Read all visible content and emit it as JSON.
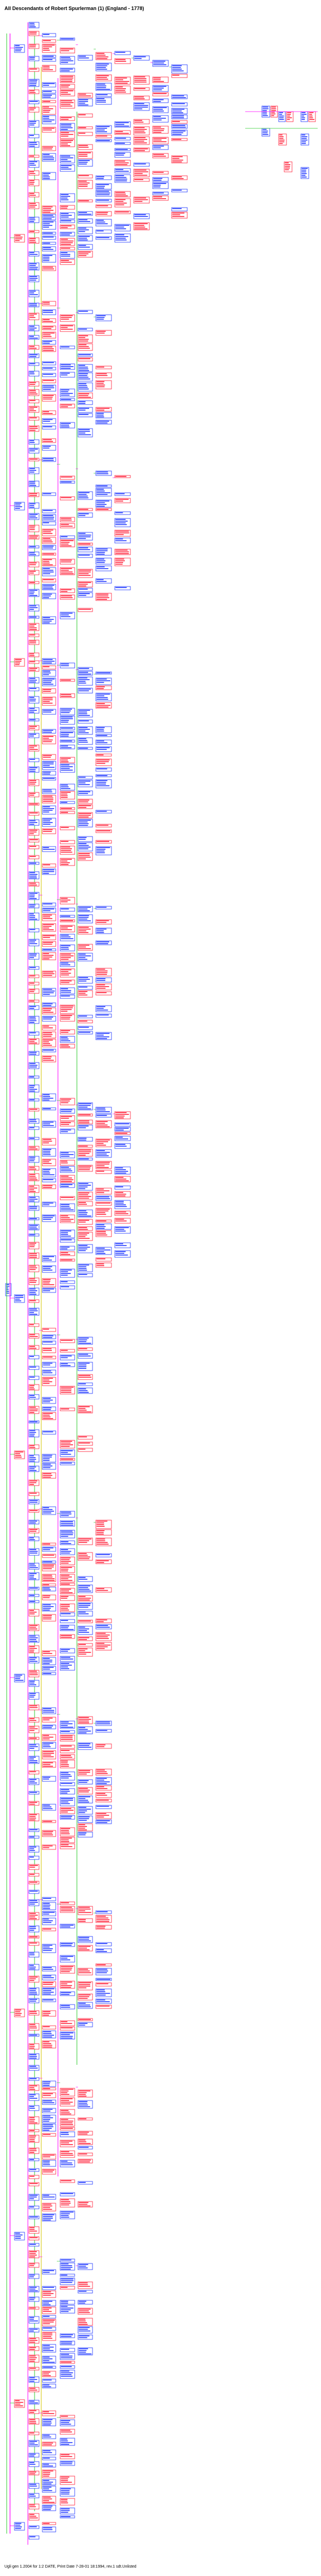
{
  "title": "All Descendants of Robert Spurlerman (1) (England - 1778)",
  "footer": "Ugli gen 1.2004 for 1:2 DATE, Print Date 7-28-01 18:1994, rev.1 sdt.Unlisted",
  "colors": {
    "male_border": "#1a33ff",
    "female_border": "#ff1a33",
    "male_line": "#ff00ff",
    "female_line": "#33cc33",
    "marriage_line": "#d4c400"
  },
  "legend_note": "Tree rendered as colored nodes (blue = male, red = female) with connecting lines"
}
